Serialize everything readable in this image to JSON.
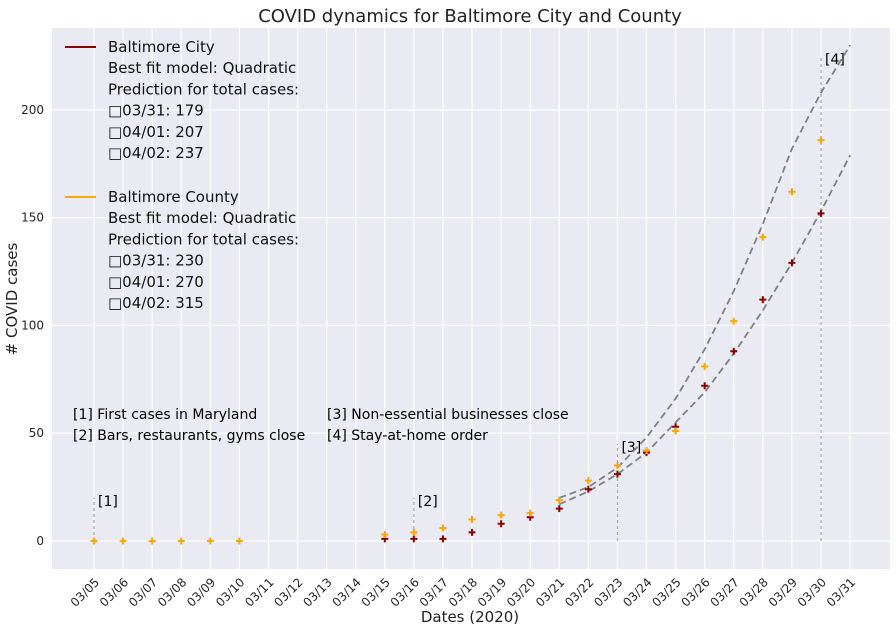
{
  "chart_data": {
    "type": "scatter",
    "title": "COVID dynamics for Baltimore City and County",
    "xlabel": "Dates (2020)",
    "ylabel": "# COVID cases",
    "categories": [
      "03/05",
      "03/06",
      "03/07",
      "03/08",
      "03/09",
      "03/10",
      "03/11",
      "03/12",
      "03/13",
      "03/14",
      "03/15",
      "03/16",
      "03/17",
      "03/18",
      "03/19",
      "03/20",
      "03/21",
      "03/22",
      "03/23",
      "03/24",
      "03/25",
      "03/26",
      "03/27",
      "03/28",
      "03/29",
      "03/30",
      "03/31"
    ],
    "ylim": [
      -13,
      238
    ],
    "yticks": [
      0,
      50,
      100,
      150,
      200
    ],
    "grid": true,
    "legend_position": "top-left",
    "series": [
      {
        "name": "Baltimore City",
        "color": "#8b0000",
        "marker": "+",
        "values": [
          null,
          null,
          null,
          null,
          null,
          null,
          null,
          null,
          null,
          null,
          1,
          1,
          1,
          4,
          8,
          11,
          15,
          24,
          31,
          41,
          53,
          72,
          88,
          112,
          129,
          152,
          null
        ]
      },
      {
        "name": "Baltimore County",
        "color": "#ffa500",
        "marker": "+",
        "values": [
          0,
          0,
          0,
          0,
          0,
          0,
          null,
          null,
          null,
          null,
          3,
          4,
          6,
          10,
          12,
          13,
          19,
          28,
          35,
          42,
          51,
          81,
          102,
          141,
          162,
          186,
          null
        ]
      }
    ],
    "fit_curves": [
      {
        "series": "Baltimore County",
        "style": "dashed",
        "color": "#808080",
        "x_start": "03/21",
        "x_end": "03/31",
        "values": [
          20,
          25,
          34,
          48,
          66,
          89,
          116,
          147,
          182,
          208,
          230
        ]
      },
      {
        "series": "Baltimore City",
        "style": "dashed",
        "color": "#808080",
        "x_start": "03/21",
        "x_end": "03/31",
        "values": [
          17,
          23,
          31,
          41,
          55,
          69,
          87,
          107,
          129,
          153,
          179
        ]
      }
    ],
    "legend": [
      {
        "name": "Baltimore City",
        "color": "#8b0000",
        "lines": [
          "Best fit model: Quadratic",
          "Prediction for total cases:",
          "□03/31: 179",
          "□04/01: 207",
          "□04/02: 237"
        ]
      },
      {
        "name": "Baltimore County",
        "color": "#ffa500",
        "lines": [
          "Best fit model: Quadratic",
          "Prediction for total cases:",
          "□03/31: 230",
          "□04/01: 270",
          "□04/02: 315"
        ]
      }
    ],
    "events": [
      {
        "label": "[1]",
        "x": "03/05",
        "text": "First cases in Maryland"
      },
      {
        "label": "[2]",
        "x": "03/16",
        "text": "Bars, restaurants, gyms close"
      },
      {
        "label": "[3]",
        "x": "03/23",
        "text": "Non-essential businesses close"
      },
      {
        "label": "[4]",
        "x": "03/30",
        "text": "Stay-at-home order"
      }
    ],
    "event_notes": [
      "[1] First cases in Maryland",
      "[2] Bars, restaurants, gyms close",
      "[3] Non-essential businesses close",
      "[4] Stay-at-home order"
    ]
  }
}
